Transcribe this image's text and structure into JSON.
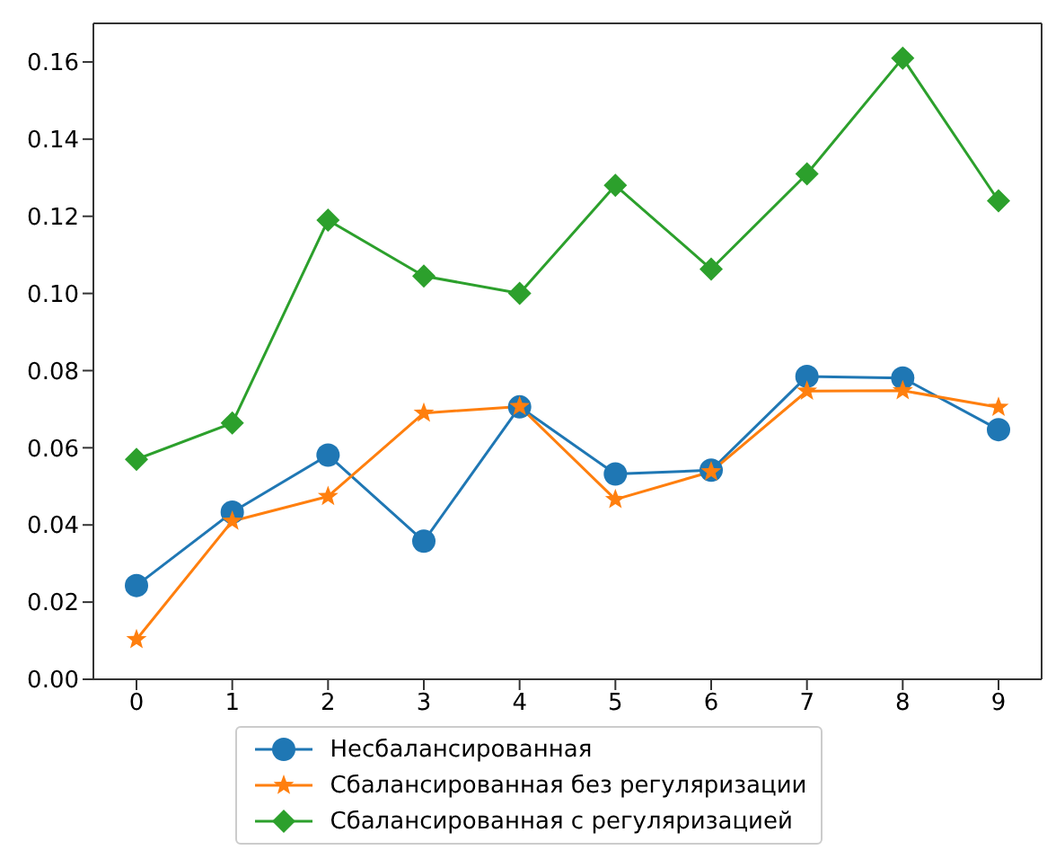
{
  "chart_data": {
    "type": "line",
    "x": [
      0,
      1,
      2,
      3,
      4,
      5,
      6,
      7,
      8,
      9
    ],
    "xlim": [
      -0.45,
      9.45
    ],
    "xticks": [
      0,
      1,
      2,
      3,
      4,
      5,
      6,
      7,
      8,
      9
    ],
    "ylim": [
      0,
      0.17
    ],
    "yticks": [
      {
        "value": 0,
        "label": "0.00"
      },
      {
        "value": 0.02,
        "label": "0.02"
      },
      {
        "value": 0.04,
        "label": "0.04"
      },
      {
        "value": 0.06,
        "label": "0.06"
      },
      {
        "value": 0.08,
        "label": "0.08"
      },
      {
        "value": 0.1,
        "label": "0.10"
      },
      {
        "value": 0.12,
        "label": "0.12"
      },
      {
        "value": 0.14,
        "label": "0.14"
      },
      {
        "value": 0.16,
        "label": "0.16"
      }
    ],
    "legend": "bottom",
    "grid": false,
    "line_style": "solid",
    "series": [
      {
        "name": "Несбалансированная",
        "color": "#1f77b4",
        "marker": "circle",
        "values": [
          0.0243,
          0.0433,
          0.0581,
          0.0358,
          0.0706,
          0.0532,
          0.0542,
          0.0785,
          0.0781,
          0.0647
        ]
      },
      {
        "name": "Сбалансированная без регуляризации",
        "color": "#ff7f0e",
        "marker": "star",
        "values": [
          0.0103,
          0.041,
          0.0474,
          0.069,
          0.0707,
          0.0466,
          0.0538,
          0.0747,
          0.0748,
          0.0705
        ]
      },
      {
        "name": "Сбалансированная с регуляризацией",
        "color": "#2ca02c",
        "marker": "diamond",
        "values": [
          0.057,
          0.0664,
          0.119,
          0.1045,
          0.1,
          0.128,
          0.1063,
          0.131,
          0.161,
          0.124
        ]
      }
    ]
  }
}
